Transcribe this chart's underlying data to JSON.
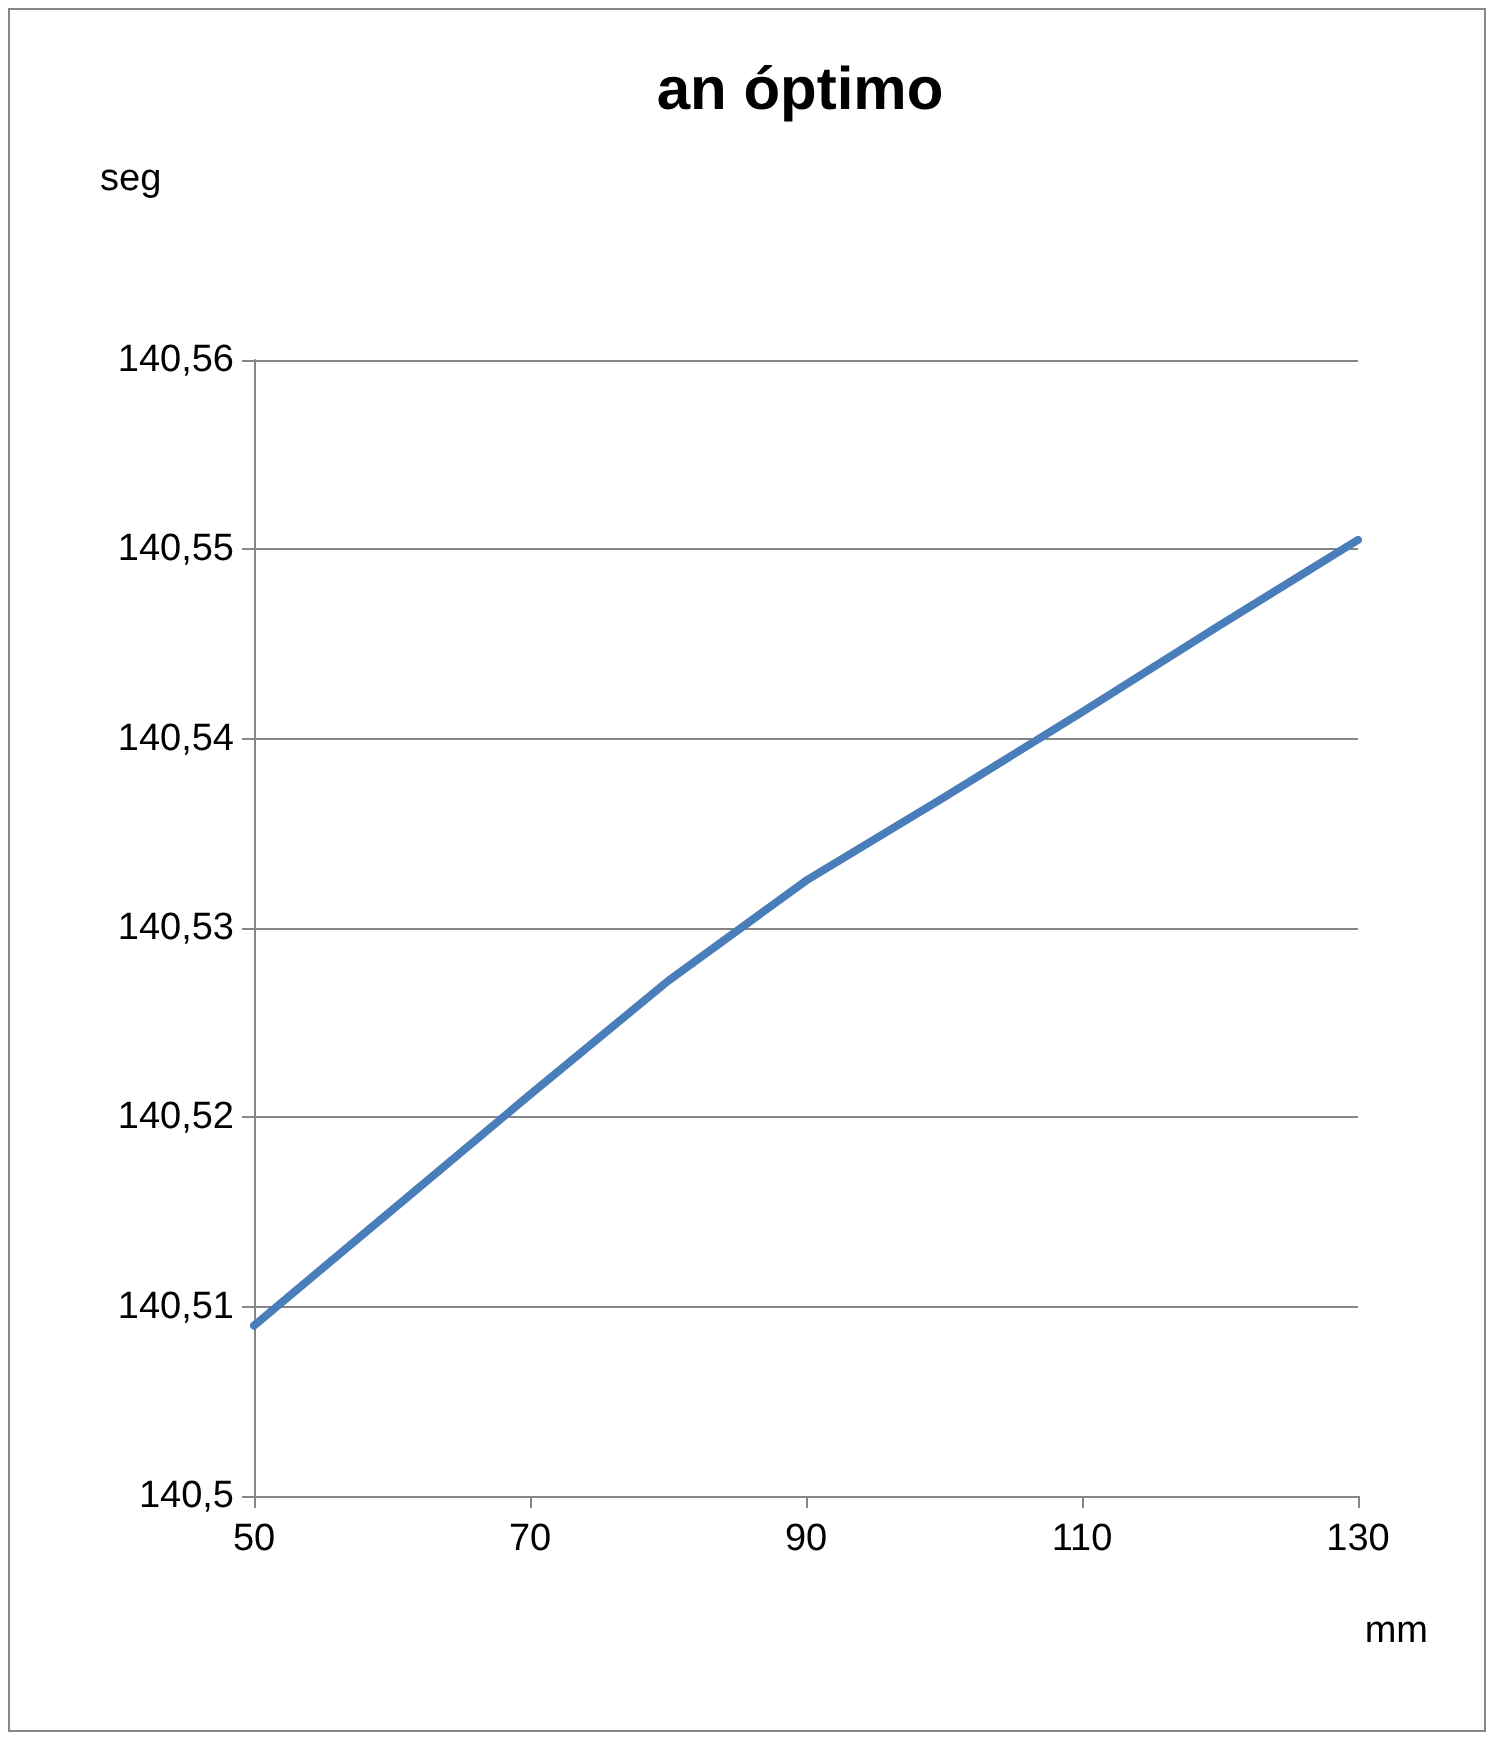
{
  "chart_data": {
    "type": "line",
    "title": "an óptimo",
    "xlabel": "mm",
    "ylabel": "seg",
    "x": [
      50,
      60,
      70,
      80,
      90,
      100,
      110,
      120,
      130
    ],
    "series": [
      {
        "color": "#4a7ebb",
        "values": [
          140.509,
          140.5151,
          140.5212,
          140.5272,
          140.5325,
          140.5369,
          140.5414,
          140.546,
          140.5505
        ]
      }
    ],
    "xlim": [
      50,
      130
    ],
    "xticks": [
      50,
      70,
      90,
      110,
      130
    ],
    "ylim": [
      140.5,
      140.56
    ],
    "yticks": [
      {
        "value": 140.5,
        "label": "140,5"
      },
      {
        "value": 140.51,
        "label": "140,51"
      },
      {
        "value": 140.52,
        "label": "140,52"
      },
      {
        "value": 140.53,
        "label": "140,53"
      },
      {
        "value": 140.54,
        "label": "140,54"
      },
      {
        "value": 140.55,
        "label": "140,55"
      },
      {
        "value": 140.56,
        "label": "140,56"
      }
    ],
    "grid": "y",
    "marker": "none",
    "line_style": "solid"
  }
}
